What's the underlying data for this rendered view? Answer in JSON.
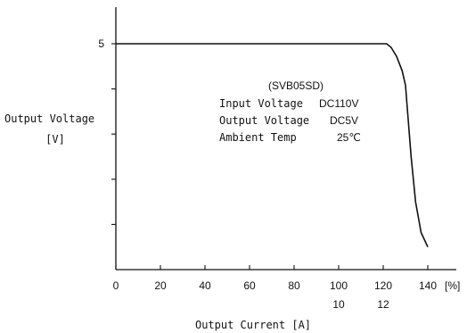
{
  "chart_data": {
    "type": "line",
    "title": "",
    "xlabel": "Output Current [A]",
    "ylabel_line1": "Output Voltage",
    "ylabel_line2": "[V]",
    "x_unit": "[%]",
    "x_ticks": [
      0,
      20,
      40,
      60,
      80,
      100,
      120,
      140
    ],
    "x_ticks_labels": [
      "0",
      "20",
      "40",
      "60",
      "80",
      "100",
      "120",
      "140"
    ],
    "x_secondary_ticks": [
      100,
      120
    ],
    "x_secondary_labels": [
      "10",
      "12"
    ],
    "y_tick_labeled": [
      5
    ],
    "y_tick_labels": [
      "5"
    ],
    "y_tick_positions": [
      1,
      2,
      3,
      4,
      5
    ],
    "xlim": [
      0,
      150
    ],
    "ylim": [
      0,
      6
    ],
    "grid": false,
    "series": [
      {
        "x": [
          0,
          20,
          40,
          60,
          80,
          100,
          120,
          121.5,
          123.5,
          126,
          128.5,
          130,
          131,
          132.5,
          134.5,
          137,
          140
        ],
        "y": [
          5,
          5,
          5,
          5,
          5,
          5,
          5,
          5,
          4.92,
          4.72,
          4.4,
          4.08,
          3.45,
          2.5,
          1.5,
          0.82,
          0.5
        ]
      }
    ],
    "annotation": {
      "title": "(SVB05SD)",
      "rows": [
        {
          "label": "Input Voltage",
          "value": "DC110V"
        },
        {
          "label": "Output Voltage",
          "value": "DC5V"
        },
        {
          "label": "Ambient Temp",
          "value": "25℃"
        }
      ]
    }
  }
}
